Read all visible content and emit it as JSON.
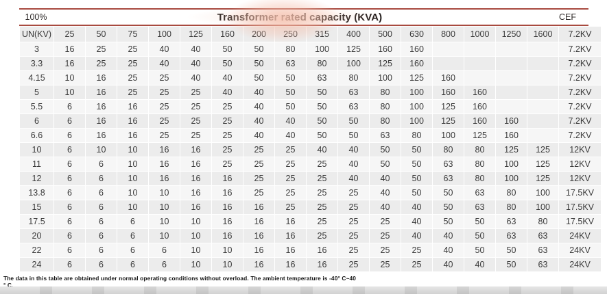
{
  "header": {
    "percent": "100%",
    "title": "Transformer rated capacity (KVA)",
    "cef_label": "CEF"
  },
  "table": {
    "un_label": "UN(KV)",
    "capacity_headers": [
      "25",
      "50",
      "75",
      "100",
      "125",
      "160",
      "200",
      "250",
      "315",
      "400",
      "500",
      "630",
      "800",
      "1000",
      "1250",
      "1600"
    ],
    "header_cef_value": "7.2KV",
    "rows": [
      {
        "un": "3",
        "values": [
          "16",
          "25",
          "25",
          "40",
          "40",
          "50",
          "50",
          "80",
          "100",
          "125",
          "160",
          "160",
          "",
          "",
          "",
          ""
        ],
        "cef": "7.2KV"
      },
      {
        "un": "3.3",
        "values": [
          "16",
          "25",
          "25",
          "40",
          "40",
          "50",
          "50",
          "63",
          "80",
          "100",
          "125",
          "160",
          "",
          "",
          "",
          ""
        ],
        "cef": "7.2KV"
      },
      {
        "un": "4.15",
        "values": [
          "10",
          "16",
          "25",
          "25",
          "40",
          "40",
          "50",
          "50",
          "63",
          "80",
          "100",
          "125",
          "160",
          "",
          "",
          ""
        ],
        "cef": "7.2KV"
      },
      {
        "un": "5",
        "values": [
          "10",
          "16",
          "25",
          "25",
          "25",
          "40",
          "40",
          "50",
          "50",
          "63",
          "80",
          "100",
          "160",
          "160",
          "",
          ""
        ],
        "cef": "7.2KV"
      },
      {
        "un": "5.5",
        "values": [
          "6",
          "16",
          "16",
          "25",
          "25",
          "25",
          "40",
          "50",
          "50",
          "63",
          "80",
          "100",
          "125",
          "160",
          "",
          ""
        ],
        "cef": "7.2KV"
      },
      {
        "un": "6",
        "values": [
          "6",
          "16",
          "16",
          "25",
          "25",
          "25",
          "40",
          "40",
          "50",
          "50",
          "80",
          "100",
          "125",
          "160",
          "160",
          ""
        ],
        "cef": "7.2KV"
      },
      {
        "un": "6.6",
        "values": [
          "6",
          "16",
          "16",
          "25",
          "25",
          "25",
          "40",
          "40",
          "50",
          "50",
          "63",
          "80",
          "100",
          "125",
          "160",
          ""
        ],
        "cef": "7.2KV"
      },
      {
        "un": "10",
        "values": [
          "6",
          "10",
          "10",
          "16",
          "16",
          "25",
          "25",
          "25",
          "40",
          "40",
          "50",
          "50",
          "80",
          "80",
          "125",
          "125"
        ],
        "cef": "12KV"
      },
      {
        "un": "11",
        "values": [
          "6",
          "6",
          "10",
          "16",
          "16",
          "25",
          "25",
          "25",
          "25",
          "40",
          "50",
          "50",
          "63",
          "80",
          "100",
          "125"
        ],
        "cef": "12KV"
      },
      {
        "un": "12",
        "values": [
          "6",
          "6",
          "10",
          "16",
          "16",
          "16",
          "25",
          "25",
          "25",
          "40",
          "40",
          "50",
          "63",
          "80",
          "100",
          "125"
        ],
        "cef": "12KV"
      },
      {
        "un": "13.8",
        "values": [
          "6",
          "6",
          "10",
          "10",
          "16",
          "16",
          "25",
          "25",
          "25",
          "25",
          "40",
          "50",
          "50",
          "63",
          "80",
          "100"
        ],
        "cef": "17.5KV"
      },
      {
        "un": "15",
        "values": [
          "6",
          "6",
          "10",
          "10",
          "16",
          "16",
          "16",
          "25",
          "25",
          "25",
          "40",
          "40",
          "50",
          "63",
          "80",
          "100"
        ],
        "cef": "17.5KV"
      },
      {
        "un": "17.5",
        "values": [
          "6",
          "6",
          "6",
          "10",
          "10",
          "16",
          "16",
          "16",
          "25",
          "25",
          "25",
          "40",
          "50",
          "50",
          "63",
          "80"
        ],
        "cef": "17.5KV"
      },
      {
        "un": "20",
        "values": [
          "6",
          "6",
          "6",
          "10",
          "10",
          "16",
          "16",
          "16",
          "25",
          "25",
          "25",
          "40",
          "40",
          "50",
          "63",
          "63"
        ],
        "cef": "24KV"
      },
      {
        "un": "22",
        "values": [
          "6",
          "6",
          "6",
          "6",
          "10",
          "10",
          "16",
          "16",
          "16",
          "25",
          "25",
          "25",
          "40",
          "50",
          "50",
          "63"
        ],
        "cef": "24KV"
      },
      {
        "un": "24",
        "values": [
          "6",
          "6",
          "6",
          "6",
          "10",
          "10",
          "16",
          "16",
          "16",
          "25",
          "25",
          "25",
          "40",
          "40",
          "50",
          "63"
        ],
        "cef": "24KV"
      }
    ]
  },
  "footnote": {
    "line1": "The data in this table are obtained under normal operating conditions without overload. The ambient temperature is -40° C~40",
    "line2": "° C."
  },
  "colors": {
    "accent_line": "#a84a3f",
    "highlight": "#f4bca8",
    "row_light": "#f6f6f6",
    "row_dark": "#ececec"
  }
}
